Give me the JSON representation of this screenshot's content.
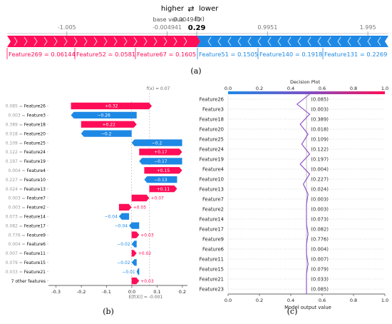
{
  "force_header": {
    "higher": "higher",
    "arrow": "⇄",
    "lower": "lower",
    "fx_label": "f(x)",
    "fx_value": "0.29",
    "base_label": "base value",
    "base_value": "-0.004941"
  },
  "panel_labels": {
    "a": "(a)",
    "b": "(b)",
    "c": "(c)"
  },
  "colors": {
    "positive": "#ff0d57",
    "negative": "#1e88e5",
    "axis": "#333333"
  },
  "chart_data": [
    {
      "type": "bar",
      "panel": "a",
      "title": "",
      "xlim": [
        -1.6,
        2.2
      ],
      "ticks": [
        {
          "value": -1.005,
          "label": "-1.005"
        },
        {
          "value": -0.004941,
          "label": "-0.004941"
        },
        {
          "value": 0.29,
          "label": "0.29"
        },
        {
          "value": 0.9951,
          "label": "0.9951"
        },
        {
          "value": 1.995,
          "label": "1.995"
        }
      ],
      "base_value": -0.004941,
      "output_value": 0.29,
      "labels": [
        {
          "text": "Feature269 = 0.06144",
          "sign": "positive"
        },
        {
          "text": "Feature52 = 0.0581",
          "sign": "positive"
        },
        {
          "text": "Feature67 = 0.1605",
          "sign": "positive"
        },
        {
          "text": "Feature51 = 0.1505",
          "sign": "negative"
        },
        {
          "text": "Feature140 = 0.1918",
          "sign": "negative"
        },
        {
          "text": "Feature131 = 0.2269",
          "sign": "negative"
        }
      ]
    },
    {
      "type": "bar",
      "panel": "b",
      "xlim": [
        -0.33,
        0.22
      ],
      "xticks": [
        -0.3,
        -0.2,
        -0.1,
        0.0,
        0.1,
        0.2
      ],
      "top_label": "f(x) = 0.07",
      "bottom_label": "E[f(X)] = -0.001",
      "base_value": -0.001,
      "output_value": 0.07,
      "categories": [
        "0.085 = Feature26",
        "0.003 = Feature3",
        "0.389 = Feature18",
        "0.018 = Feature20",
        "0.109 = Feature25",
        "0.122 = Feature24",
        "0.197 = Feature19",
        "0.004 = Feature4",
        "0.227 = Feature10",
        "0.024 = Feature13",
        "0.003 = Feature7",
        "0.003 = Feature2",
        "0.073 = Feature14",
        "0.082 = Feature17",
        "0.776 = Feature9",
        "0.004 = Feature6",
        "0.007 = Feature11",
        "0.079 = Feature15",
        "0.033 = Feature21",
        "7 other features"
      ],
      "values": [
        0.32,
        -0.26,
        0.22,
        -0.2,
        -0.2,
        0.17,
        -0.17,
        0.15,
        -0.13,
        0.11,
        0.07,
        0.05,
        -0.04,
        -0.04,
        0.03,
        -0.02,
        0.02,
        -0.02,
        -0.01,
        0.03
      ],
      "value_labels": [
        "+0.32",
        "−0.26",
        "+0.22",
        "−0.2",
        "−0.2",
        "+0.17",
        "−0.17",
        "+0.15",
        "−0.13",
        "+0.11",
        "+0.07",
        "+0.05",
        "−0.04",
        "−0.04",
        "+0.03",
        "−0.02",
        "+0.02",
        "−0.02",
        "−0.01",
        "+0.03"
      ]
    },
    {
      "type": "line",
      "panel": "c",
      "title": "Decision Plot",
      "xlabel": "Model output value",
      "xlim": [
        0.0,
        1.0
      ],
      "xticks": [
        0.0,
        0.2,
        0.4,
        0.6,
        0.8,
        1.0
      ],
      "colorbar_ticks": [
        0.0,
        0.2,
        0.4,
        0.6,
        0.8,
        1.0
      ],
      "categories": [
        "Feature26",
        "Feature3",
        "Feature18",
        "Feature20",
        "Feature25",
        "Feature24",
        "Feature19",
        "Feature4",
        "Feature10",
        "Feature13",
        "Feature7",
        "Feature2",
        "Feature14",
        "Feature17",
        "Feature9",
        "Feature6",
        "Feature11",
        "Feature15",
        "Feature21",
        "Feature23"
      ],
      "feature_values": [
        "(0.085)",
        "(0.003)",
        "(0.389)",
        "(0.018)",
        "(0.109)",
        "(0.122)",
        "(0.197)",
        "(0.004)",
        "(0.227)",
        "(0.024)",
        "(0.003)",
        "(0.003)",
        "(0.073)",
        "(0.082)",
        "(0.776)",
        "(0.004)",
        "(0.007)",
        "(0.079)",
        "(0.033)",
        "(0.085)"
      ],
      "path_x": [
        0.52,
        0.44,
        0.52,
        0.46,
        0.51,
        0.47,
        0.52,
        0.46,
        0.52,
        0.48,
        0.51,
        0.5,
        0.5,
        0.5,
        0.51,
        0.5,
        0.5,
        0.51,
        0.5,
        0.5,
        0.5
      ]
    }
  ]
}
